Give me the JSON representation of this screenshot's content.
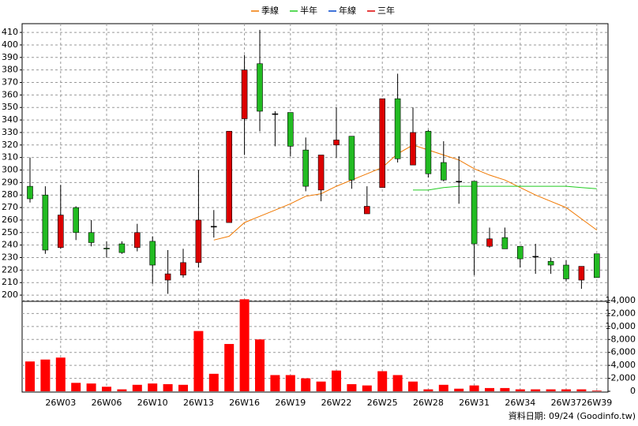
{
  "chart_data": {
    "type": "candlestick",
    "categories": [
      null,
      null,
      "26W03",
      null,
      null,
      "26W06",
      null,
      null,
      "26W10",
      null,
      null,
      "26W13",
      null,
      null,
      "26W16",
      null,
      null,
      "26W19",
      null,
      null,
      "26W22",
      null,
      null,
      "26W25",
      null,
      null,
      "26W28",
      null,
      null,
      "26W31",
      null,
      null,
      "26W34",
      null,
      null,
      "26W37",
      null,
      "26W39"
    ],
    "open": [
      287,
      280,
      238,
      270,
      250,
      237.5,
      241,
      238,
      243,
      212,
      216,
      226,
      255,
      258,
      341,
      385,
      345,
      346,
      316,
      284,
      320,
      327,
      265,
      286,
      357,
      304,
      331,
      306,
      291,
      291,
      239,
      246,
      239,
      231,
      227,
      224,
      212,
      233
    ],
    "high": [
      310,
      287,
      288,
      271,
      260,
      243,
      243,
      257,
      247,
      236,
      237,
      300,
      268,
      331,
      392,
      412,
      347,
      346,
      326,
      312,
      350,
      327,
      287,
      357,
      377,
      350,
      332,
      323,
      311,
      291,
      254,
      254,
      239,
      241,
      230,
      228,
      223,
      233
    ],
    "low": [
      274,
      233,
      237,
      244,
      239,
      230,
      233,
      235,
      209,
      201,
      214,
      222,
      246,
      258,
      312,
      331,
      319,
      311,
      283,
      275,
      310,
      285,
      265,
      286,
      306,
      304,
      294,
      291,
      273,
      216,
      238,
      237,
      222,
      217,
      217,
      211,
      205,
      214
    ],
    "close": [
      277,
      236,
      264,
      250,
      242,
      237,
      234,
      250,
      224,
      217,
      226,
      260,
      255,
      331,
      380,
      347,
      345,
      319,
      287,
      312,
      324,
      292,
      271,
      357,
      309,
      330,
      297,
      292,
      291,
      241,
      245,
      237,
      229,
      231,
      224,
      213,
      223,
      214
    ],
    "up_color": "#dd0000",
    "down_color": "#22bb22",
    "series": [
      {
        "name": "季線",
        "color": "#f07800",
        "values": [
          null,
          null,
          null,
          null,
          null,
          null,
          null,
          null,
          null,
          null,
          null,
          null,
          244,
          247,
          258,
          263,
          268,
          273,
          279,
          281,
          287,
          292,
          297,
          302,
          313,
          320,
          316,
          312,
          308,
          301,
          296,
          292,
          286,
          280,
          275,
          270,
          261,
          252
        ]
      },
      {
        "name": "半年",
        "color": "#22cc22",
        "values": [
          null,
          null,
          null,
          null,
          null,
          null,
          null,
          null,
          null,
          null,
          null,
          null,
          null,
          null,
          null,
          null,
          null,
          null,
          null,
          null,
          null,
          null,
          null,
          null,
          null,
          284,
          284,
          286,
          287,
          287,
          287,
          287,
          287,
          287,
          287,
          287,
          286,
          285
        ]
      },
      {
        "name": "年線",
        "color": "#0044cc",
        "values": [
          null,
          null,
          null,
          null,
          null,
          null,
          null,
          null,
          null,
          null,
          null,
          null,
          null,
          null,
          null,
          null,
          null,
          null,
          null,
          null,
          null,
          null,
          null,
          null,
          null,
          null,
          null,
          null,
          null,
          null,
          null,
          null,
          null,
          null,
          null,
          null,
          null,
          null
        ]
      },
      {
        "name": "三年",
        "color": "#dd0000",
        "values": [
          null,
          null,
          null,
          null,
          null,
          null,
          null,
          null,
          null,
          null,
          null,
          null,
          null,
          null,
          null,
          null,
          null,
          null,
          null,
          null,
          null,
          null,
          null,
          null,
          null,
          null,
          null,
          null,
          null,
          null,
          null,
          null,
          null,
          null,
          null,
          null,
          null,
          null
        ]
      }
    ],
    "volume": {
      "color": "#ff0000",
      "axis": "y2",
      "values": [
        4600,
        4900,
        5200,
        1300,
        1200,
        700,
        300,
        1000,
        1200,
        1100,
        1000,
        9300,
        2700,
        7300,
        14200,
        8000,
        2500,
        2500,
        2000,
        1500,
        3200,
        1100,
        900,
        3100,
        2500,
        1500,
        300,
        1000,
        400,
        900,
        500,
        500,
        300,
        300,
        300,
        300,
        300,
        100
      ]
    },
    "ylim": [
      195,
      417
    ],
    "yticks": [
      200,
      210,
      220,
      230,
      240,
      250,
      260,
      270,
      280,
      290,
      300,
      310,
      320,
      330,
      340,
      350,
      360,
      370,
      380,
      390,
      400,
      410
    ],
    "y2lim": [
      0,
      14000
    ],
    "y2ticks": [
      0,
      {
        "value": 2000,
        "label": "2,000"
      },
      {
        "value": 4000,
        "label": "4,000"
      },
      {
        "value": 6000,
        "label": "6,000"
      },
      {
        "value": 8000,
        "label": "8,000"
      },
      {
        "value": 10000,
        "label": "10,000"
      },
      {
        "value": 12000,
        "label": "12,000"
      },
      {
        "value": 14000,
        "label": "14,000"
      }
    ],
    "grid": true,
    "legend": "top",
    "footnote": "資料日期: 09/24 (Goodinfo.tw)"
  }
}
